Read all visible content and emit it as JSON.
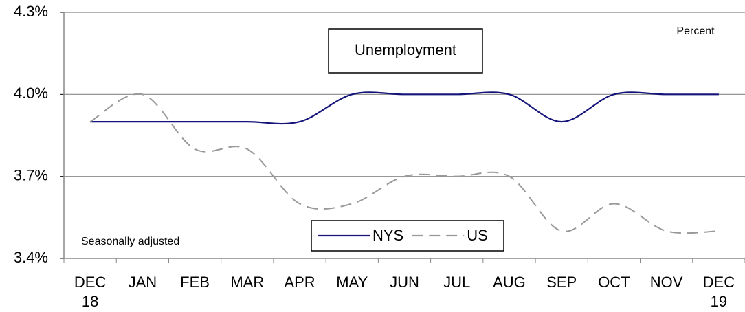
{
  "chart_data": {
    "type": "line",
    "title": "Unemployment",
    "annotations": [
      "Percent",
      "Seasonally adjusted"
    ],
    "categories": [
      "DEC\n18",
      "JAN",
      "FEB",
      "MAR",
      "APR",
      "MAY",
      "JUN",
      "JUL",
      "AUG",
      "SEP",
      "OCT",
      "NOV",
      "DEC\n19"
    ],
    "series": [
      {
        "name": "NYS",
        "color": "#14147a",
        "dash": "solid",
        "values": [
          3.9,
          3.9,
          3.9,
          3.9,
          3.9,
          4.0,
          4.0,
          4.0,
          4.0,
          3.9,
          4.0,
          4.0,
          4.0
        ]
      },
      {
        "name": "US",
        "color": "#999999",
        "dash": "dashed",
        "values": [
          3.9,
          4.0,
          3.8,
          3.8,
          3.6,
          3.6,
          3.7,
          3.7,
          3.7,
          3.5,
          3.6,
          3.5,
          3.5
        ]
      }
    ],
    "ylim": [
      3.4,
      4.3
    ],
    "yticks": [
      {
        "value": 3.4,
        "label": "3.4%"
      },
      {
        "value": 3.7,
        "label": "3.7%"
      },
      {
        "value": 4.0,
        "label": "4.0%"
      },
      {
        "value": 4.3,
        "label": "4.3%"
      }
    ],
    "grid": true
  }
}
